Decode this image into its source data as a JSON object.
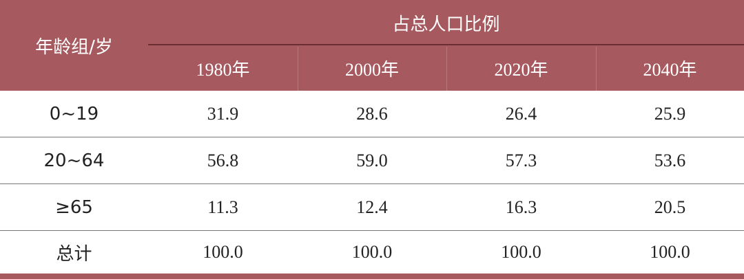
{
  "header": {
    "group_label": "年龄组/岁",
    "span_label": "占总人口比例",
    "years": [
      "1980年",
      "2000年",
      "2020年",
      "2040年"
    ]
  },
  "table": {
    "rows": [
      [
        "0~19",
        "31.9",
        "28.6",
        "26.4",
        "25.9"
      ],
      [
        "20~64",
        "56.8",
        "59.0",
        "57.3",
        "53.6"
      ],
      [
        "≥65",
        "11.3",
        "12.4",
        "16.3",
        "20.5"
      ],
      [
        "总计",
        "100.0",
        "100.0",
        "100.0",
        "100.0"
      ]
    ]
  }
}
